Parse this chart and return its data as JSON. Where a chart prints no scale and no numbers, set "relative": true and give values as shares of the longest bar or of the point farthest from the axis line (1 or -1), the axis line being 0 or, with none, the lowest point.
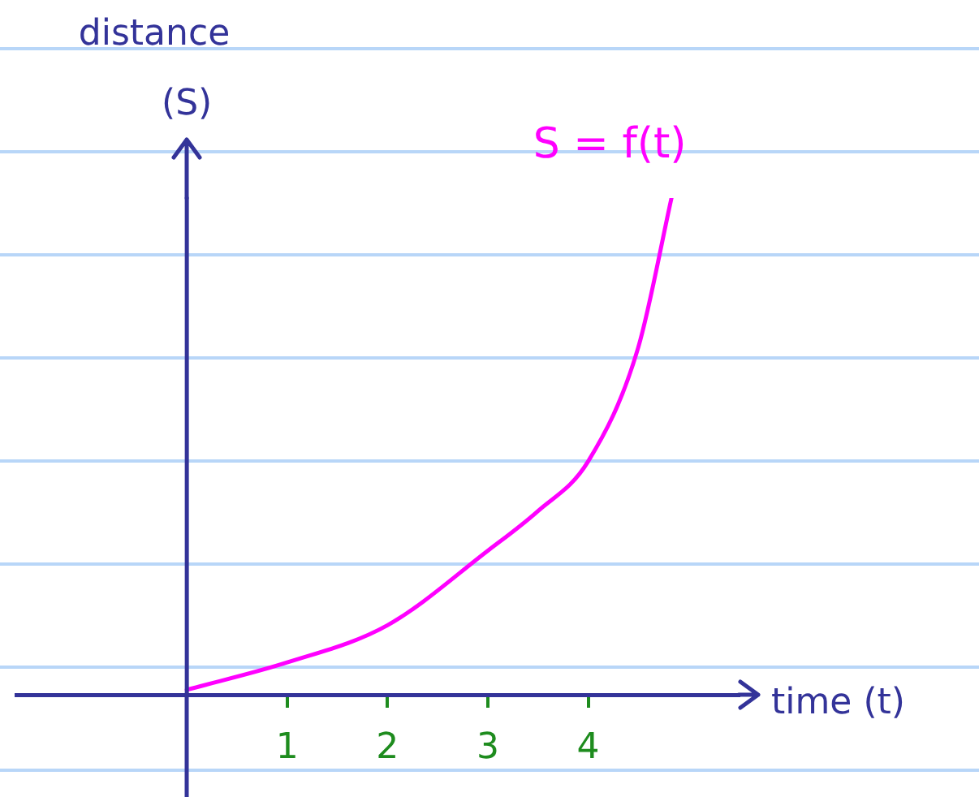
{
  "chart_data": {
    "type": "line",
    "relative": true,
    "x": [
      0,
      1,
      2,
      3,
      3.5,
      4,
      4.5,
      4.83
    ],
    "values": [
      0.01,
      0.065,
      0.14,
      0.29,
      0.37,
      0.47,
      0.7,
      1
    ],
    "color": "#ff00ff",
    "marker": "none",
    "line_style": "solid",
    "xlim": [
      -1.7,
      5.5
    ],
    "xticks": [
      1,
      2,
      3,
      4
    ],
    "tick_labels": "x",
    "xlabel": "time (t)",
    "ylabel": "distance (S)",
    "annotations": [
      "S = f(t)"
    ],
    "ref_lines": [
      {
        "axis": "x",
        "value": 0,
        "color": "#333399"
      }
    ]
  }
}
